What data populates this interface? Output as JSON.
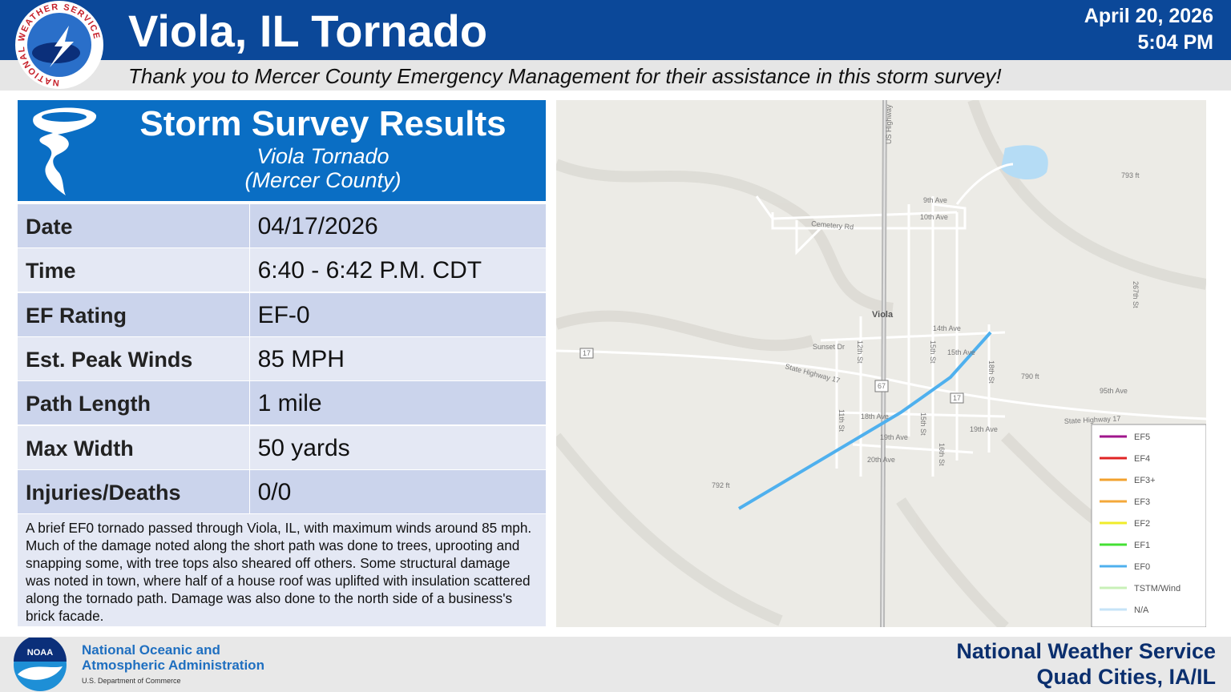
{
  "header": {
    "logo_text": "NATIONAL WEATHER SERVICE",
    "title": "Viola, IL Tornado",
    "date": "April 20, 2026",
    "time": "5:04 PM",
    "subtitle": "Thank you to Mercer County Emergency Management for their assistance in this storm survey!"
  },
  "panel": {
    "title": "Storm Survey Results",
    "event": "Viola Tornado",
    "county": "(Mercer County)"
  },
  "table": {
    "rows": [
      [
        "Date",
        "04/17/2026"
      ],
      [
        "Time",
        "6:40 - 6:42 P.M. CDT"
      ],
      [
        "EF Rating",
        "EF-0"
      ],
      [
        "Est. Peak Winds",
        "85 MPH"
      ],
      [
        "Path Length",
        "1 mile"
      ],
      [
        "Max Width",
        "50 yards"
      ],
      [
        "Injuries/Deaths",
        "0/0"
      ]
    ]
  },
  "description": "A brief EF0 tornado passed through Viola, IL, with maximum winds around 85 mph. Much of the damage noted along the short path was done to trees, uprooting and snapping some, with tree tops also sheared off others. Some structural damage was noted in town, where half of a house roof was uplifted with insulation scattered along the tornado path. Damage was also done to the north side of a business's brick facade.",
  "map": {
    "labels": [
      "US Highway",
      "9th Ave",
      "10th Ave",
      "Cemetery Rd",
      "Viola",
      "14th Ave",
      "15th Ave",
      "Sunset Dr",
      "12th St",
      "15th St",
      "18th St",
      "State Highway 17",
      "17",
      "67",
      "17",
      "790 ft",
      "95th Ave",
      "18th Ave",
      "11th St",
      "19th Ave",
      "15th St",
      "19th Ave",
      "20th Ave",
      "16th St",
      "State Highway 17",
      "792 ft",
      "793 ft",
      "267th St"
    ],
    "legend": [
      {
        "name": "EF5",
        "color": "#a0168c"
      },
      {
        "name": "EF4",
        "color": "#e02424"
      },
      {
        "name": "EF3+",
        "color": "#f2a12e"
      },
      {
        "name": "EF3",
        "color": "#f4a83a"
      },
      {
        "name": "EF2",
        "color": "#f0ec2a"
      },
      {
        "name": "EF1",
        "color": "#44e034"
      },
      {
        "name": "EF0",
        "color": "#4fb0ee"
      },
      {
        "name": "TSTM/Wind",
        "color": "#c8f0b8"
      },
      {
        "name": "N/A",
        "color": "#c6e3f7"
      }
    ]
  },
  "footer": {
    "noaa_logo_text": "NOAA",
    "agency_line1": "National Oceanic and",
    "agency_line2": "Atmospheric Administration",
    "department": "U.S. Department of Commerce",
    "office": "National Weather Service",
    "location": "Quad Cities, IA/IL"
  }
}
